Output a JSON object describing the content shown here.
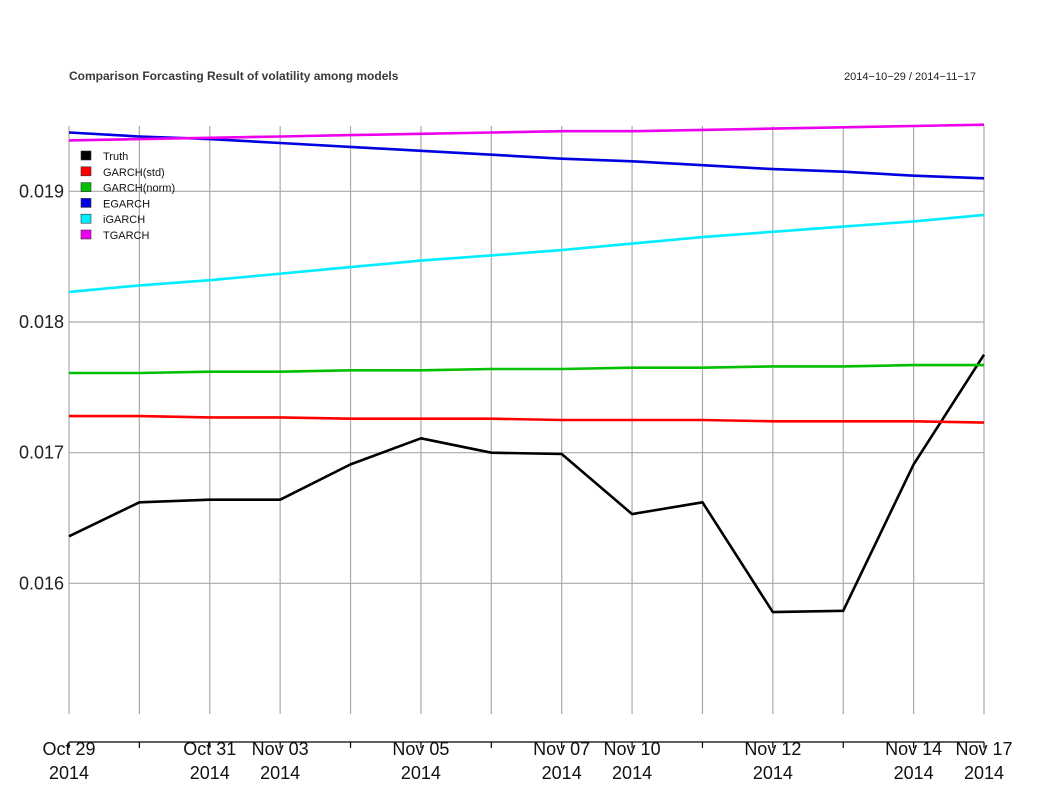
{
  "chart_data": {
    "type": "line",
    "title": "Comparison Forcasting Result of volatility among models",
    "date_range": "2014−10−29 / 2014−11−17",
    "x": [
      "2014-10-29",
      "2014-10-30",
      "2014-10-31",
      "2014-11-03",
      "2014-11-04",
      "2014-11-05",
      "2014-11-06",
      "2014-11-07",
      "2014-11-10",
      "2014-11-11",
      "2014-11-12",
      "2014-11-13",
      "2014-11-14",
      "2014-11-17"
    ],
    "x_tick_labels": [
      {
        "date": "2014-10-29",
        "line1": "Oct 29",
        "line2": "2014"
      },
      {
        "date": "2014-10-31",
        "line1": "Oct 31",
        "line2": "2014"
      },
      {
        "date": "2014-11-03",
        "line1": "Nov 03",
        "line2": "2014"
      },
      {
        "date": "2014-11-05",
        "line1": "Nov 05",
        "line2": "2014"
      },
      {
        "date": "2014-11-07",
        "line1": "Nov 07",
        "line2": "2014"
      },
      {
        "date": "2014-11-10",
        "line1": "Nov 10",
        "line2": "2014"
      },
      {
        "date": "2014-11-12",
        "line1": "Nov 12",
        "line2": "2014"
      },
      {
        "date": "2014-11-14",
        "line1": "Nov 14",
        "line2": "2014"
      },
      {
        "date": "2014-11-17",
        "line1": "Nov 17",
        "line2": "2014"
      }
    ],
    "y_ticks": [
      "0.016",
      "0.017",
      "0.018",
      "0.019"
    ],
    "ylim": [
      0.015,
      0.0195
    ],
    "grid": true,
    "legend_position": "top-left",
    "series": [
      {
        "name": "Truth",
        "color": "#000000",
        "values": [
          0.01636,
          0.01662,
          0.01664,
          0.01664,
          0.01691,
          0.01711,
          0.017,
          0.01699,
          0.01653,
          0.01662,
          0.01578,
          0.01579,
          0.01691,
          0.01775
        ]
      },
      {
        "name": "GARCH(std)",
        "color": "#ff0000",
        "values": [
          0.01728,
          0.01728,
          0.01727,
          0.01727,
          0.01726,
          0.01726,
          0.01726,
          0.01725,
          0.01725,
          0.01725,
          0.01724,
          0.01724,
          0.01724,
          0.01723
        ]
      },
      {
        "name": "GARCH(norm)",
        "color": "#00c000",
        "values": [
          0.01761,
          0.01761,
          0.01762,
          0.01762,
          0.01763,
          0.01763,
          0.01764,
          0.01764,
          0.01765,
          0.01765,
          0.01766,
          0.01766,
          0.01767,
          0.01767
        ]
      },
      {
        "name": "EGARCH",
        "color": "#0000e0",
        "values": [
          0.01945,
          0.01942,
          0.0194,
          0.01937,
          0.01934,
          0.01931,
          0.01928,
          0.01925,
          0.01923,
          0.0192,
          0.01917,
          0.01915,
          0.01912,
          0.0191
        ]
      },
      {
        "name": "iGARCH",
        "color": "#00eeff",
        "values": [
          0.01823,
          0.01828,
          0.01832,
          0.01837,
          0.01842,
          0.01847,
          0.01851,
          0.01855,
          0.0186,
          0.01865,
          0.01869,
          0.01873,
          0.01877,
          0.01882
        ]
      },
      {
        "name": "TGARCH",
        "color": "#ee00ee",
        "values": [
          0.01939,
          0.0194,
          0.01941,
          0.01942,
          0.01943,
          0.01944,
          0.01945,
          0.01946,
          0.01946,
          0.01947,
          0.01948,
          0.01949,
          0.0195,
          0.01951
        ]
      }
    ]
  }
}
